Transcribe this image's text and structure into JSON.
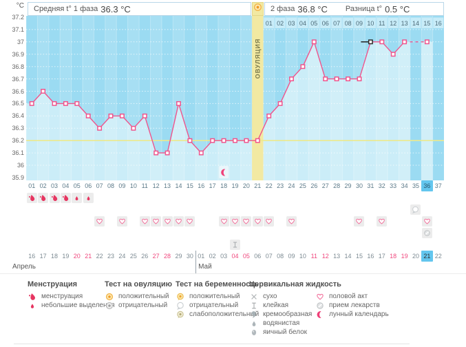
{
  "header": {
    "unit_label": "°C",
    "phase1_label": "Средняя t° 1 фаза",
    "phase1_value": "36.3 °C",
    "phase2_label": "2 фаза",
    "phase2_value": "36.8 °C",
    "difference_label": "Разница t°",
    "difference_value": "0.5 °C"
  },
  "chart_data": {
    "type": "line",
    "title": "Basal body temperature cycle chart",
    "ylabel": "°C",
    "ylim": [
      35.9,
      37.2
    ],
    "ytick_step": 0.1,
    "yticks": [
      "37.2",
      "37.1",
      "37",
      "36.9",
      "36.8",
      "36.7",
      "36.6",
      "36.5",
      "36.4",
      "36.3",
      "36.2",
      "36.1",
      "36",
      "35.9"
    ],
    "cycle_days": [
      "01",
      "02",
      "03",
      "04",
      "05",
      "06",
      "07",
      "08",
      "09",
      "10",
      "11",
      "12",
      "13",
      "14",
      "15",
      "16",
      "17",
      "18",
      "19",
      "20",
      "21",
      "22",
      "23",
      "24",
      "25",
      "26",
      "27",
      "28",
      "29",
      "30",
      "31",
      "32",
      "33",
      "34",
      "35",
      "36",
      "37"
    ],
    "temperatures_c": [
      36.5,
      36.6,
      36.5,
      36.5,
      36.5,
      36.4,
      36.3,
      36.4,
      36.4,
      36.3,
      36.4,
      36.1,
      36.1,
      36.5,
      36.2,
      36.1,
      36.2,
      36.2,
      36.2,
      36.2,
      36.2,
      36.4,
      36.5,
      36.7,
      36.8,
      37.0,
      36.7,
      36.7,
      36.7,
      36.7,
      37.0,
      37.0,
      36.9,
      37.0,
      null,
      37.0,
      null
    ],
    "coverline_c": 36.2,
    "ovulation_day": 21,
    "ovulation_label": "ОВУЛЯЦИЯ",
    "phase2_start_day": 22,
    "phase2_day_labels": [
      "01",
      "02",
      "03",
      "04",
      "05",
      "06",
      "07",
      "08",
      "09",
      "10",
      "11",
      "12",
      "13",
      "14",
      "15",
      "16"
    ],
    "selected_day": 31,
    "today_day": 36,
    "lunar_event": {
      "day": 18,
      "icon": "lunar-calendar-icon"
    },
    "grid": "dotted-white",
    "legend_position": "bottom",
    "bg_color": "#9bdbf2",
    "area_color": "#cbedf8",
    "line_color": "#f0548c",
    "coverline_color": "#ece98c",
    "ovulation_band_color": "#f2e9a2",
    "today_highlight_color": "#63c6ee"
  },
  "day_rows": [
    {
      "id": "menstruation-row",
      "entries": [
        {
          "icon": "menstruation-heavy-icon",
          "days": [
            1,
            2,
            3,
            4
          ]
        },
        {
          "icon": "menstruation-light-icon",
          "days": [
            5,
            6
          ]
        }
      ]
    },
    {
      "id": "pregnancy-test-row",
      "entries": [
        {
          "icon": "pregnancy-test-negative-icon",
          "days": [
            35
          ]
        }
      ]
    },
    {
      "id": "intercourse-row",
      "entries": [
        {
          "icon": "intercourse-heart-icon",
          "days": [
            7,
            9,
            11,
            12,
            13,
            14,
            15,
            18,
            19,
            20,
            21,
            22,
            24,
            30,
            32,
            36
          ]
        }
      ]
    },
    {
      "id": "medication-row",
      "entries": [
        {
          "icon": "medication-pill-icon",
          "days": [
            36
          ]
        }
      ]
    },
    {
      "id": "cervical-fluid-row",
      "entries": [
        {
          "icon": "cervical-sticky-icon",
          "days": [
            19
          ]
        }
      ]
    }
  ],
  "calendar": {
    "month_labels": {
      "april": "Апрель",
      "may": "Май"
    },
    "dates": [
      "16",
      "17",
      "18",
      "19",
      "20",
      "21",
      "22",
      "23",
      "24",
      "25",
      "26",
      "27",
      "28",
      "29",
      "30",
      "01",
      "02",
      "03",
      "04",
      "05",
      "06",
      "07",
      "08",
      "09",
      "10",
      "11",
      "12",
      "13",
      "14",
      "15",
      "16",
      "17",
      "18",
      "19",
      "20",
      "21",
      "22"
    ],
    "weekend_days": [
      5,
      6,
      12,
      13,
      19,
      20,
      26,
      27,
      33,
      34
    ],
    "today_day": 36,
    "may_start_day": 16
  },
  "legend": {
    "groups": [
      {
        "title": "Менструация",
        "items": [
          {
            "icon": "menstruation-heavy-icon",
            "label": "менструация"
          },
          {
            "icon": "menstruation-light-icon",
            "label": "небольшие выделения"
          }
        ]
      },
      {
        "title": "Тест на овуляцию",
        "items": [
          {
            "icon": "ovulation-test-positive-icon",
            "label": "положительный"
          },
          {
            "icon": "ovulation-test-negative-icon",
            "label": "отрицательный"
          }
        ]
      },
      {
        "title": "Тест на беременность",
        "items": [
          {
            "icon": "pregnancy-test-positive-icon",
            "label": "положительный"
          },
          {
            "icon": "pregnancy-test-negative-icon",
            "label": "отрицательный"
          },
          {
            "icon": "pregnancy-test-weak-icon",
            "label": "слабоположительный"
          }
        ]
      },
      {
        "title": "Цервикальная жидкость",
        "items": [
          {
            "icon": "cervical-dry-icon",
            "label": "сухо"
          },
          {
            "icon": "cervical-sticky-icon",
            "label": "клейкая"
          },
          {
            "icon": "cervical-creamy-icon",
            "label": "кремообразная"
          },
          {
            "icon": "cervical-watery-icon",
            "label": "водянистая"
          },
          {
            "icon": "cervical-eggwhite-icon",
            "label": "яичный белок"
          }
        ]
      },
      {
        "title": "",
        "items": [
          {
            "icon": "intercourse-heart-icon",
            "label": "половой акт"
          },
          {
            "icon": "medication-pill-icon",
            "label": "прием лекарств"
          },
          {
            "icon": "lunar-calendar-icon",
            "label": "лунный календарь"
          }
        ]
      }
    ]
  }
}
